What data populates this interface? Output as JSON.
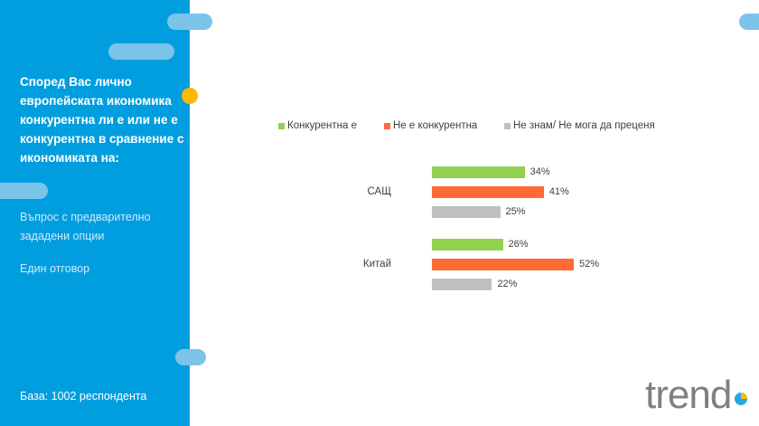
{
  "sidebar": {
    "question": "Според Вас лично европейската икономика конкурентна ли е или не е конкурентна в сравнение с икономиката на:",
    "type": "Въпрос с предварително зададени опции",
    "answer_mode": "Един отговор",
    "base": "База: 1002 респондента"
  },
  "logo": "trend",
  "colors": {
    "panel": "#009edf",
    "green": "#92d050",
    "orange": "#ff6b35",
    "gray": "#bfbfbf"
  },
  "chart_data": {
    "type": "bar",
    "orientation": "horizontal",
    "categories": [
      "САЩ",
      "Китай"
    ],
    "series": [
      {
        "name": "Конкурентна е",
        "values": [
          34,
          26
        ],
        "color": "#92d050"
      },
      {
        "name": "Не е конкурентна",
        "values": [
          41,
          52
        ],
        "color": "#ff6b35"
      },
      {
        "name": "Не знам/ Не мога да преценя",
        "values": [
          25,
          22
        ],
        "color": "#bfbfbf"
      }
    ],
    "unit": "%",
    "legend": "top",
    "grid": false
  }
}
